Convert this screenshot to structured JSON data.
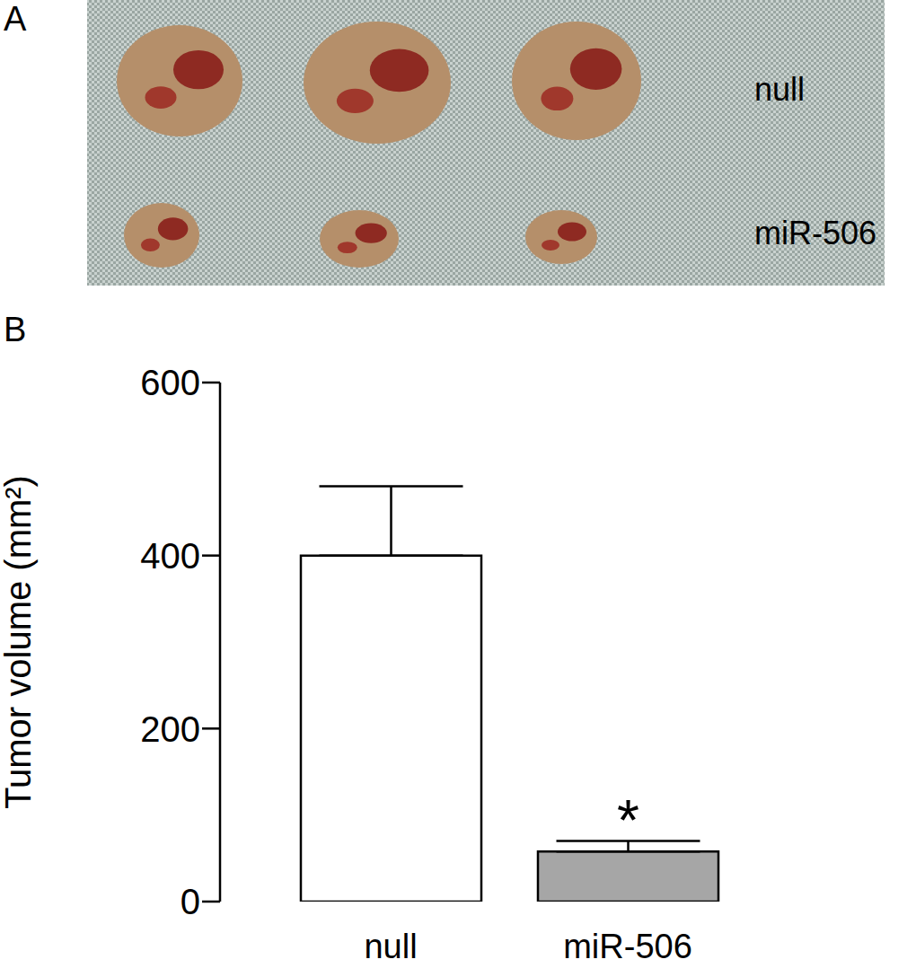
{
  "panel_a": {
    "label": "A",
    "row_labels": [
      "null",
      "miR-506"
    ]
  },
  "chart_data": {
    "type": "bar",
    "panel_label": "B",
    "y_label": "Tumor volume (mm²)",
    "categories": [
      "null",
      "miR-506"
    ],
    "values": [
      400,
      58
    ],
    "errors": [
      80,
      12
    ],
    "colors": [
      "#ffffff",
      "#a6a6a6"
    ],
    "ylim": [
      0,
      600
    ],
    "yticks": [
      0,
      200,
      400,
      600
    ],
    "grid": false,
    "annotations": [
      {
        "text": "*",
        "category": "miR-506"
      }
    ]
  }
}
